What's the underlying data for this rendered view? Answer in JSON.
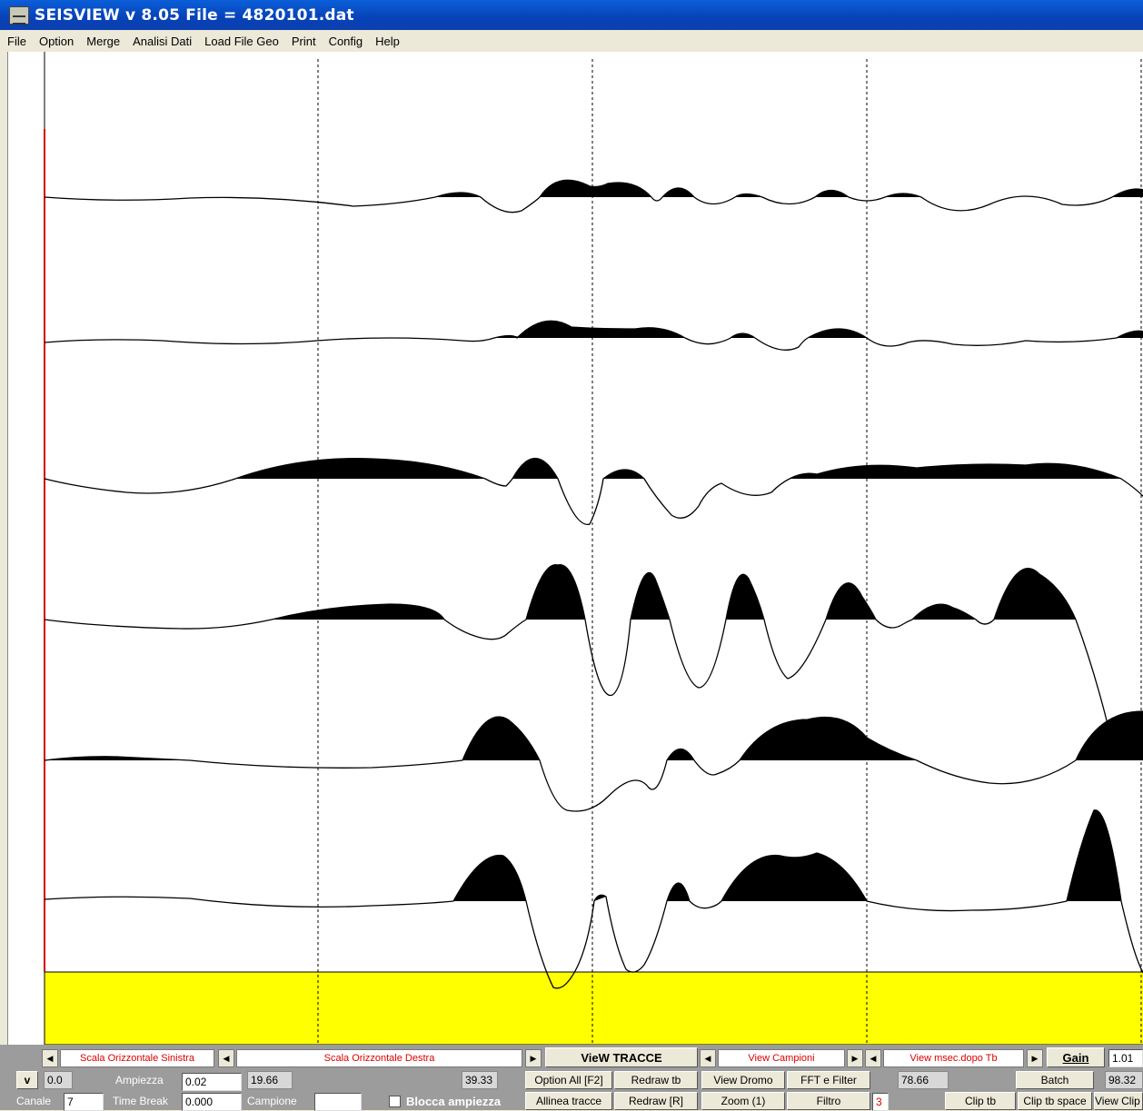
{
  "window": {
    "title": "SEISVIEW v 8.05    File = 4820101.dat"
  },
  "menu": [
    "File",
    "Option",
    "Merge",
    "Analisi Dati",
    "Load File Geo",
    "Print",
    "Config",
    "Help"
  ],
  "colors": {
    "baseline_marker": "#d00000",
    "bottom_band": "#ffff00",
    "trace_fill": "#000000"
  },
  "plot": {
    "trace_count": 6,
    "grid_lines": 4
  },
  "controls": {
    "scala_sinistra": "Scala Orizzontale Sinistra",
    "scala_destra": "Scala Orizzontale Destra",
    "view_tracce": "VieW TRACCE",
    "view_campioni": "View Campioni",
    "view_msec": "View msec.dopo Tb",
    "gain_label": "Gain",
    "gain_value": "1.01",
    "v_label": "v",
    "val_0": "0.0",
    "ampiezza_label": "Ampiezza",
    "ampiezza_value": "0.02",
    "val_1966": "19.66",
    "val_3933": "39.33",
    "option_all": "Option All [F2]",
    "redraw_tb": "Redraw tb",
    "view_dromo": "View Dromo",
    "fft_filter": "FFT e Filter",
    "val_7866": "78.66",
    "batch": "Batch",
    "val_9832": "98.32",
    "canale_label": "Canale",
    "canale_value": "7",
    "time_break_label": "Time Break",
    "time_break_value": "0.000",
    "campione_label": "Campione",
    "campione_value": "",
    "blocca": "Blocca ampiezza",
    "allinea": "Allinea tracce",
    "redraw_r": "Redraw  [R]",
    "zoom": "Zoom (1)",
    "filtro": "Filtro",
    "filtro_value": "3",
    "clip_tb": "Clip tb",
    "clip_tb_space": "Clip tb space",
    "view_clip": "View Clip"
  }
}
